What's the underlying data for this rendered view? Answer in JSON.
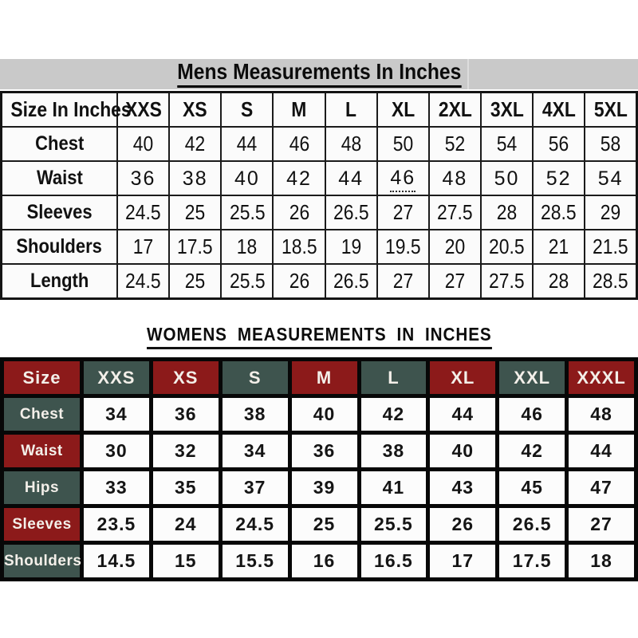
{
  "colors": {
    "maroon": "#8c1a1a",
    "green": "#3e544e",
    "title_band": "#c9c9c9"
  },
  "chart_data": [
    {
      "type": "table",
      "title": "Mens Measurements In Inches",
      "columns": [
        "Size In Inches",
        "XXS",
        "XS",
        "S",
        "M",
        "L",
        "XL",
        "2XL",
        "3XL",
        "4XL",
        "5XL"
      ],
      "rows": [
        {
          "label": "Chest",
          "values": [
            40,
            42,
            44,
            46,
            48,
            50,
            52,
            54,
            56,
            58
          ]
        },
        {
          "label": "Waist",
          "values": [
            36,
            38,
            40,
            42,
            44,
            46,
            48,
            50,
            52,
            54
          ],
          "style": "wide",
          "marked_value_index": 5
        },
        {
          "label": "Sleeves",
          "values": [
            24.5,
            25,
            25.5,
            26,
            26.5,
            27,
            27.5,
            28,
            28.5,
            29
          ]
        },
        {
          "label": "Shoulders",
          "values": [
            17,
            17.5,
            18,
            18.5,
            19,
            19.5,
            20,
            20.5,
            21,
            21.5
          ]
        },
        {
          "label": "Length",
          "values": [
            24.5,
            25,
            25.5,
            26,
            26.5,
            27,
            27,
            27.5,
            28,
            28.5
          ]
        }
      ],
      "layout_hints": {
        "header_background": "none",
        "grid": "thin-black",
        "title_band_background": "#c9c9c9"
      }
    },
    {
      "type": "table",
      "title": "WOMENS MEASUREMENTS IN INCHES",
      "columns": [
        "Size",
        "XXS",
        "XS",
        "S",
        "M",
        "L",
        "XL",
        "XXL",
        "XXXL"
      ],
      "rows": [
        {
          "label": "Chest",
          "values": [
            34,
            36,
            38,
            40,
            42,
            44,
            46,
            48
          ]
        },
        {
          "label": "Waist",
          "values": [
            30,
            32,
            34,
            36,
            38,
            40,
            42,
            44
          ]
        },
        {
          "label": "Hips",
          "values": [
            33,
            35,
            37,
            39,
            41,
            43,
            45,
            47
          ]
        },
        {
          "label": "Sleeves",
          "values": [
            23.5,
            24,
            24.5,
            25,
            25.5,
            26,
            26.5,
            27
          ]
        },
        {
          "label": "Shoulders",
          "values": [
            14.5,
            15,
            15.5,
            16,
            16.5,
            17,
            17.5,
            18
          ]
        }
      ],
      "layout_hints": {
        "header_colors_alternating": [
          "#8c1a1a",
          "#3e544e"
        ],
        "grid": "thick-black",
        "cell_background": "#fcfcfc"
      }
    }
  ]
}
